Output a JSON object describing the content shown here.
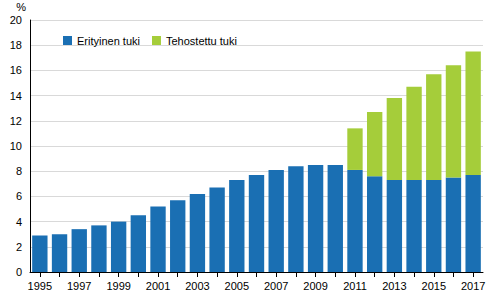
{
  "chart_data": {
    "type": "bar",
    "stacked": true,
    "grid": true,
    "legend": "upper left",
    "ylabel": "%",
    "categories": [
      "1995",
      null,
      "1997",
      null,
      "1999",
      null,
      "2001",
      null,
      "2003",
      null,
      "2005",
      null,
      "2007",
      null,
      "2009",
      null,
      "2011",
      null,
      "2013",
      null,
      "2015",
      null,
      "2017"
    ],
    "series": [
      {
        "name": "Erityinen tuki",
        "color": "#1a6fb3",
        "values": [
          2.9,
          3.0,
          3.4,
          3.7,
          4.0,
          4.5,
          5.2,
          5.7,
          6.2,
          6.7,
          7.3,
          7.7,
          8.1,
          8.4,
          8.5,
          8.5,
          8.1,
          7.6,
          7.3,
          7.3,
          7.3,
          7.5,
          7.7
        ]
      },
      {
        "name": "Tehostettu tuki",
        "color": "#a5cd3a",
        "values": [
          null,
          null,
          null,
          null,
          null,
          null,
          null,
          null,
          null,
          null,
          null,
          null,
          null,
          null,
          null,
          null,
          3.3,
          5.1,
          6.5,
          7.4,
          8.4,
          8.9,
          9.8
        ]
      }
    ],
    "ylim": [
      0,
      20
    ],
    "yticks": [
      0,
      2,
      4,
      6,
      8,
      10,
      12,
      14,
      16,
      18,
      20
    ]
  }
}
